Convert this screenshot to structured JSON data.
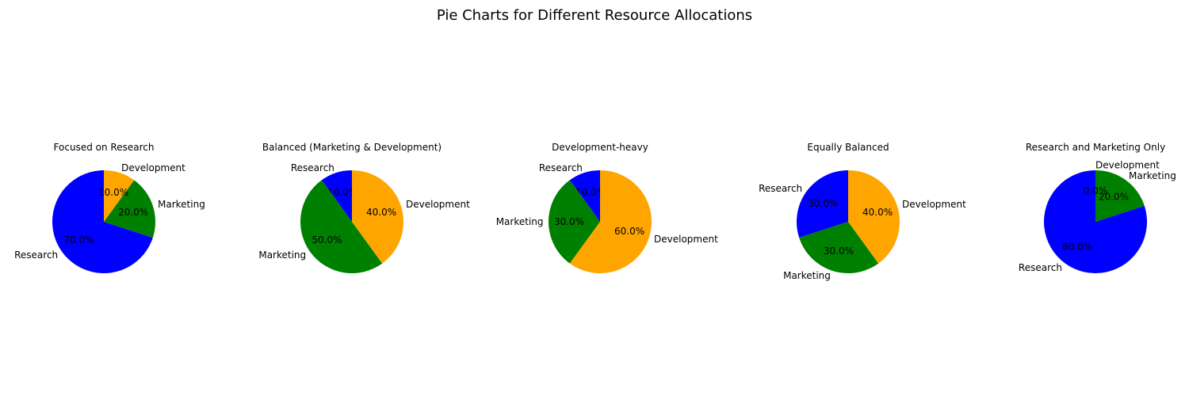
{
  "figure": {
    "title": "Pie Charts for Different Resource Allocations"
  },
  "chart_data": [
    {
      "type": "pie",
      "title": "Focused on Research",
      "categories": [
        "Research",
        "Marketing",
        "Development"
      ],
      "values": [
        70,
        20,
        10
      ],
      "colors": [
        "#0000ff",
        "#008000",
        "#ffa500"
      ],
      "autopct": [
        "70.0%",
        "20.0%",
        "10.0%"
      ]
    },
    {
      "type": "pie",
      "title": "Balanced (Marketing & Development)",
      "categories": [
        "Research",
        "Marketing",
        "Development"
      ],
      "values": [
        10,
        50,
        40
      ],
      "colors": [
        "#0000ff",
        "#008000",
        "#ffa500"
      ],
      "autopct": [
        "10.0%",
        "50.0%",
        "40.0%"
      ]
    },
    {
      "type": "pie",
      "title": "Development-heavy",
      "categories": [
        "Research",
        "Marketing",
        "Development"
      ],
      "values": [
        10,
        30,
        60
      ],
      "colors": [
        "#0000ff",
        "#008000",
        "#ffa500"
      ],
      "autopct": [
        "10.0%",
        "30.0%",
        "60.0%"
      ]
    },
    {
      "type": "pie",
      "title": "Equally Balanced",
      "categories": [
        "Research",
        "Marketing",
        "Development"
      ],
      "values": [
        30,
        30,
        40
      ],
      "colors": [
        "#0000ff",
        "#008000",
        "#ffa500"
      ],
      "autopct": [
        "30.0%",
        "30.0%",
        "40.0%"
      ]
    },
    {
      "type": "pie",
      "title": "Research and Marketing Only",
      "categories": [
        "Research",
        "Marketing",
        "Development"
      ],
      "values": [
        80,
        20,
        0
      ],
      "colors": [
        "#0000ff",
        "#008000",
        "#ffa500"
      ],
      "autopct": [
        "80.0%",
        "20.0%",
        "0.0%"
      ]
    }
  ]
}
